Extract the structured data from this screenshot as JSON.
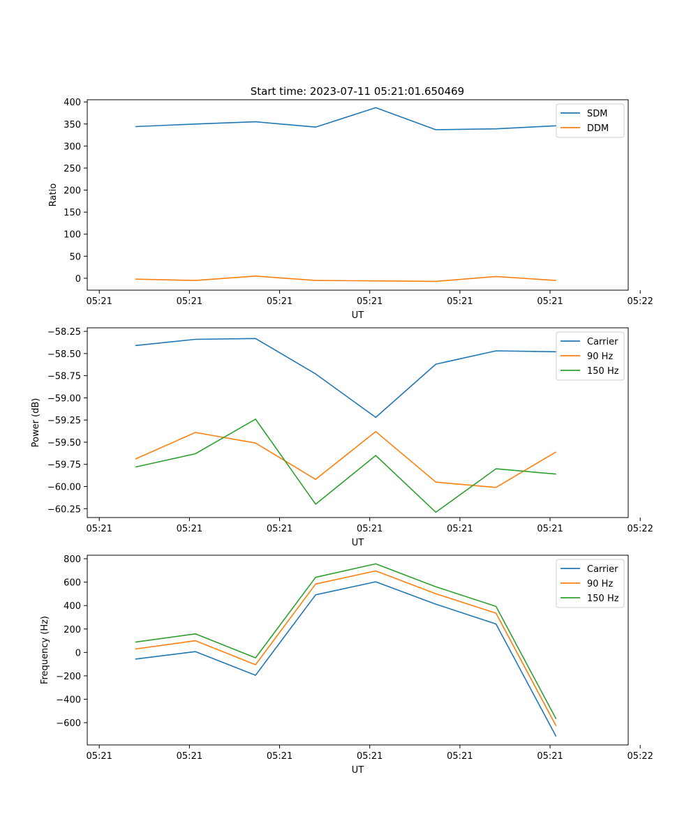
{
  "chart_data": [
    {
      "type": "line",
      "title": "Start time: 2023-07-11 05:21:01.650469",
      "xlabel": "UT",
      "ylabel": "Ratio",
      "x": [
        1,
        2,
        3,
        4,
        5,
        6,
        7,
        8
      ],
      "xlim": [
        0.2,
        9.2
      ],
      "xticks": [
        0.4,
        1.9,
        3.4,
        4.9,
        6.4,
        7.9,
        9.4
      ],
      "xtick_labels": [
        "05:21",
        "05:21",
        "05:21",
        "05:21",
        "05:21",
        "05:21",
        "05:22"
      ],
      "ylim": [
        -27,
        405
      ],
      "yticks": [
        0,
        50,
        100,
        150,
        200,
        250,
        300,
        350,
        400
      ],
      "ytick_labels": [
        "0",
        "50",
        "100",
        "150",
        "200",
        "250",
        "300",
        "350",
        "400"
      ],
      "grid": false,
      "legend": "top-right",
      "series": [
        {
          "name": "SDM",
          "color": "#1f77b4",
          "values": [
            344,
            350,
            355,
            343,
            387,
            337,
            339,
            346
          ]
        },
        {
          "name": "DDM",
          "color": "#ff7f0e",
          "values": [
            -2,
            -5,
            5,
            -5,
            -6,
            -7,
            4,
            -5
          ]
        }
      ]
    },
    {
      "type": "line",
      "title": "",
      "xlabel": "UT",
      "ylabel": "Power (dB)",
      "x": [
        1,
        2,
        3,
        4,
        5,
        6,
        7,
        8
      ],
      "xlim": [
        0.2,
        9.2
      ],
      "xticks": [
        0.4,
        1.9,
        3.4,
        4.9,
        6.4,
        7.9,
        9.4
      ],
      "xtick_labels": [
        "05:21",
        "05:21",
        "05:21",
        "05:21",
        "05:21",
        "05:21",
        "05:22"
      ],
      "ylim": [
        -60.35,
        -58.21
      ],
      "yticks": [
        -58.25,
        -58.5,
        -58.75,
        -59.0,
        -59.25,
        -59.5,
        -59.75,
        -60.0,
        -60.25
      ],
      "ytick_labels": [
        "−58.25",
        "−58.50",
        "−58.75",
        "−59.00",
        "−59.25",
        "−59.50",
        "−59.75",
        "−60.00",
        "−60.25"
      ],
      "grid": false,
      "legend": "top-right",
      "series": [
        {
          "name": "Carrier",
          "color": "#1f77b4",
          "values": [
            -58.41,
            -58.34,
            -58.33,
            -58.73,
            -59.22,
            -58.62,
            -58.47,
            -58.48
          ]
        },
        {
          "name": "90 Hz",
          "color": "#ff7f0e",
          "values": [
            -59.69,
            -59.39,
            -59.51,
            -59.92,
            -59.38,
            -59.95,
            -60.01,
            -59.61
          ]
        },
        {
          "name": "150 Hz",
          "color": "#2ca02c",
          "values": [
            -59.78,
            -59.63,
            -59.24,
            -60.2,
            -59.65,
            -60.29,
            -59.8,
            -59.86
          ]
        }
      ]
    },
    {
      "type": "line",
      "title": "",
      "xlabel": "UT",
      "ylabel": "Frequency (Hz)",
      "x": [
        1,
        2,
        3,
        4,
        5,
        6,
        7,
        8
      ],
      "xlim": [
        0.2,
        9.2
      ],
      "xticks": [
        0.4,
        1.9,
        3.4,
        4.9,
        6.4,
        7.9,
        9.4
      ],
      "xtick_labels": [
        "05:21",
        "05:21",
        "05:21",
        "05:21",
        "05:21",
        "05:21",
        "05:22"
      ],
      "ylim": [
        -790,
        830
      ],
      "yticks": [
        -600,
        -400,
        -200,
        0,
        200,
        400,
        600,
        800
      ],
      "ytick_labels": [
        "−600",
        "−400",
        "−200",
        "0",
        "200",
        "400",
        "600",
        "800"
      ],
      "grid": false,
      "legend": "top-right",
      "series": [
        {
          "name": "Carrier",
          "color": "#1f77b4",
          "values": [
            -57,
            7,
            -195,
            492,
            603,
            412,
            243,
            -718
          ]
        },
        {
          "name": "90 Hz",
          "color": "#ff7f0e",
          "values": [
            29,
            100,
            -105,
            584,
            696,
            501,
            335,
            -628
          ]
        },
        {
          "name": "150 Hz",
          "color": "#2ca02c",
          "values": [
            88,
            158,
            -46,
            641,
            756,
            561,
            393,
            -568
          ]
        }
      ]
    }
  ]
}
